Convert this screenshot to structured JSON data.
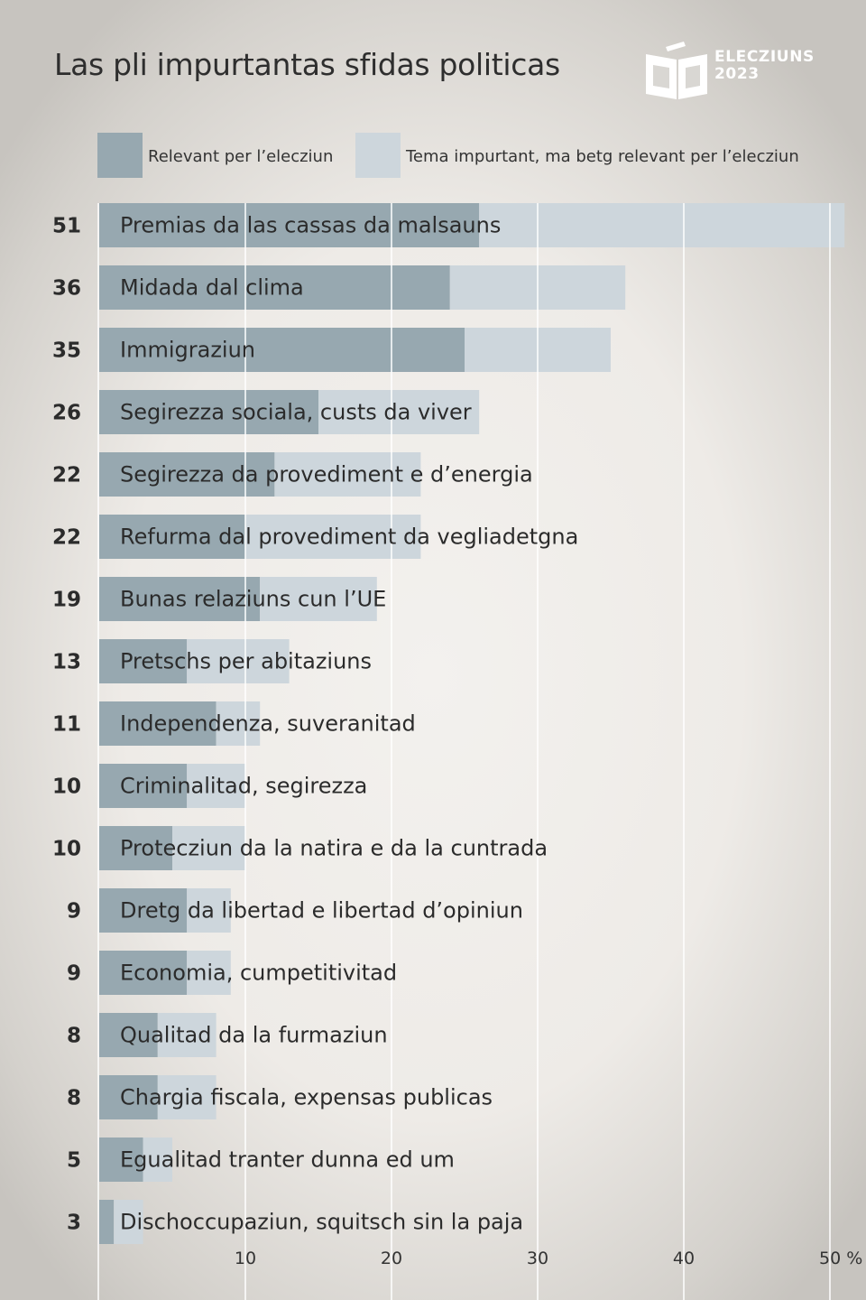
{
  "title": "Las pli impurtantas sfidas politicas",
  "logo": {
    "line1": "ELECZIUNS",
    "line2": "2023",
    "icon": "ballot-box-icon"
  },
  "colors": {
    "relevant": "#97a8b0",
    "important": "#cdd6dc",
    "grid": "#ffffff"
  },
  "legend": [
    {
      "key": "relevant",
      "label": "Relevant per l’elecziun"
    },
    {
      "key": "important",
      "label": "Tema impurtant, ma betg relevant per l’elecziun"
    }
  ],
  "chart_data": {
    "type": "bar",
    "orientation": "horizontal",
    "stacked": true,
    "title": "Las pli impurtantas sfidas politicas",
    "unit": "%",
    "xlim": [
      0,
      51
    ],
    "ticks": [
      {
        "value": 10,
        "label": "10"
      },
      {
        "value": 20,
        "label": "20"
      },
      {
        "value": 30,
        "label": "30"
      },
      {
        "value": 40,
        "label": "40"
      },
      {
        "value": 50,
        "label": "50 %"
      }
    ],
    "grid": true,
    "legend_position": "top",
    "categories": [
      "Premias da las cassas da malsauns",
      "Midada dal clima",
      "Immigraziun",
      "Segirezza sociala, custs da viver",
      "Segirezza da provediment e d’energia",
      "Refurma dal provediment da vegliadetgna",
      "Bunas relaziuns cun l’UE",
      "Pretschs per abitaziuns",
      "Independenza, suveranitad",
      "Criminalitad, segirezza",
      "Protecziun da la natira e da la cuntrada",
      "Dretg da libertad e libertad d’opiniun",
      "Economia, cumpetitivitad",
      "Qualitad da la furmaziun",
      "Chargia fiscala, expensas publicas",
      "Egualitad tranter dunna ed um",
      "Dischoccupaziun, squitsch sin la paja"
    ],
    "totals": [
      "51",
      "36",
      "35",
      "26",
      "22",
      "22",
      "19",
      "13",
      "11",
      "10",
      "10",
      "9",
      "9",
      "8",
      "8",
      "5",
      "3"
    ],
    "series": [
      {
        "name": "Relevant per l’elecziun",
        "key": "relevant",
        "values": [
          26,
          24,
          25,
          15,
          12,
          10,
          11,
          6,
          8,
          6,
          5,
          6,
          6,
          4,
          4,
          3,
          1
        ]
      },
      {
        "name": "Tema impurtant, ma betg relevant per l’elecziun",
        "key": "important",
        "values": [
          25,
          12,
          10,
          11,
          10,
          12,
          8,
          7,
          3,
          4,
          5,
          3,
          3,
          4,
          4,
          2,
          2
        ]
      }
    ]
  }
}
